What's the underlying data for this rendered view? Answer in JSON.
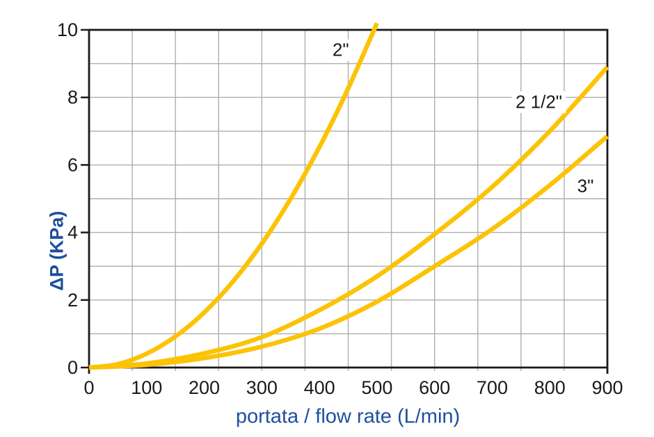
{
  "chart_data": {
    "type": "line",
    "title": "",
    "xlabel": "portata / flow rate (L/min)",
    "ylabel": "ΔP (KPa)",
    "xlim": [
      0,
      900
    ],
    "ylim": [
      0,
      10
    ],
    "x_ticks": [
      0,
      100,
      200,
      300,
      400,
      500,
      600,
      700,
      800,
      900
    ],
    "y_ticks": [
      0,
      2,
      4,
      6,
      8,
      10
    ],
    "grid": {
      "on": true,
      "x_step": 75,
      "y_step": 1
    },
    "legend_position": "inline-curve-labels",
    "series": [
      {
        "name": "2\"",
        "label": {
          "text": "2\"",
          "x": 437,
          "y": 9.4
        },
        "x": [
          0,
          50,
          100,
          150,
          200,
          250,
          300,
          350,
          400,
          450,
          500
        ],
        "values": [
          0,
          0.1,
          0.41,
          0.92,
          1.63,
          2.55,
          3.67,
          5.0,
          6.53,
          8.27,
          10.2
        ]
      },
      {
        "name": "2 1/2\"",
        "label": {
          "text": "2 1/2\"",
          "x": 781,
          "y": 7.85
        },
        "x": [
          0,
          100,
          200,
          300,
          400,
          500,
          600,
          700,
          800,
          900
        ],
        "values": [
          0,
          0.12,
          0.42,
          0.9,
          1.7,
          2.7,
          3.95,
          5.35,
          7.0,
          8.9
        ]
      },
      {
        "name": "3\"",
        "label": {
          "text": "3\"",
          "x": 862,
          "y": 5.37
        },
        "x": [
          0,
          100,
          200,
          300,
          400,
          500,
          600,
          700,
          800,
          900
        ],
        "values": [
          0,
          0.08,
          0.28,
          0.62,
          1.15,
          1.95,
          3.0,
          4.1,
          5.4,
          6.85
        ]
      }
    ],
    "colors": {
      "curve": "#FCC306",
      "grid": "#AEAEAE",
      "border": "#1A1A1A",
      "tick_text": "#1A1A1A",
      "axis_title": "#1E4F9E",
      "background": "#FFFFFF"
    }
  }
}
